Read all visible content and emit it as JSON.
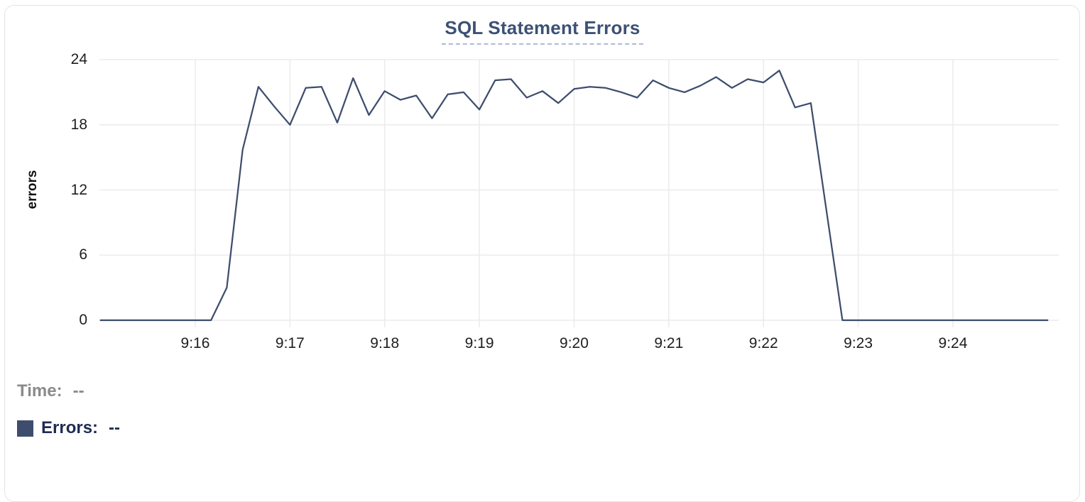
{
  "card": {
    "type": "chart-panel"
  },
  "chart_data": {
    "type": "line",
    "title": "SQL Statement Errors",
    "xlabel": "",
    "ylabel": "errors",
    "ylim": [
      0,
      24
    ],
    "y_ticks": [
      0,
      6,
      12,
      18,
      24
    ],
    "y_tick_labels": [
      "0",
      "6",
      "12",
      "18",
      "24"
    ],
    "x_tick_labels": [
      "9:16",
      "9:17",
      "9:18",
      "9:19",
      "9:20",
      "9:21",
      "9:22",
      "9:23",
      "9:24"
    ],
    "x_start_time": "9:15:00",
    "x_end_time": "9:25:00",
    "sample_interval_sec": 10,
    "grid": true,
    "legend_position": "bottom-left",
    "series": [
      {
        "name": "Errors",
        "color": "#3e4d6e",
        "values": [
          0,
          0,
          0,
          0,
          0,
          0,
          0,
          0,
          3,
          15.7,
          21.5,
          19.7,
          18,
          21.4,
          21.5,
          18.2,
          22.3,
          18.9,
          21.1,
          20.3,
          20.7,
          18.6,
          20.8,
          21,
          19.4,
          22.1,
          22.2,
          20.5,
          21.1,
          20,
          21.3,
          21.5,
          21.4,
          21,
          20.5,
          22.1,
          21.4,
          21,
          21.6,
          22.4,
          21.4,
          22.2,
          21.9,
          23,
          19.6,
          20,
          10,
          0,
          0,
          0,
          0,
          0,
          0,
          0,
          0,
          0,
          0,
          0,
          0,
          0,
          0
        ]
      }
    ]
  },
  "legend": {
    "time_label": "Time:",
    "time_value": "--",
    "errors_label": "Errors:",
    "errors_value": "--",
    "swatch_color": "#3e4d6e"
  },
  "colors": {
    "title": "#3c5174",
    "title_underline": "#aebbd6",
    "grid": "#ebebeb",
    "line": "#3e4d6e",
    "tick_text": "#1e1e1e",
    "time_label_gray": "#8b8b8b",
    "errors_label_navy": "#1e2c52",
    "card_border": "#e3e3e6"
  }
}
